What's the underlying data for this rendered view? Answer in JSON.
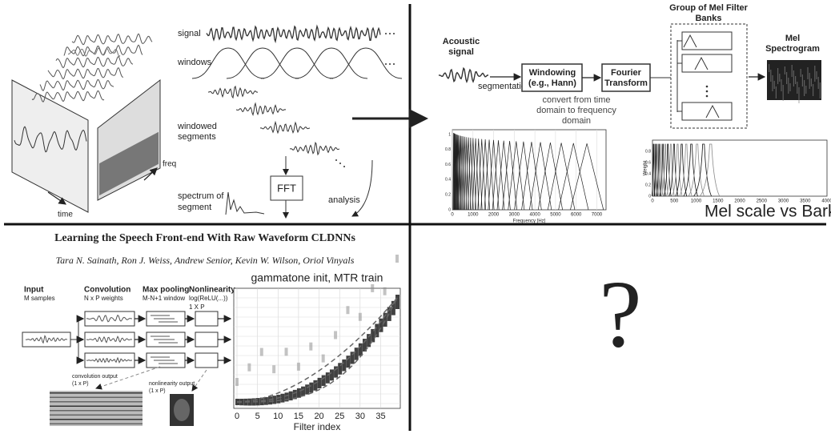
{
  "stft": {
    "signal": "signal",
    "windows": "windows",
    "windowed_segments": [
      "windowed",
      "segments"
    ],
    "spectrum": [
      "spectrum of",
      "segment"
    ],
    "fft": "FFT",
    "analysis": "analysis",
    "time": "time",
    "freq": "freq"
  },
  "pipeline": {
    "acoustic_signal": [
      "Acoustic",
      "signal"
    ],
    "segmentation": "segmentation",
    "windowing": [
      "Windowing",
      "(e.g., Hann)"
    ],
    "fourier": [
      "Fourier",
      "Transform"
    ],
    "convert_note": [
      "convert from time",
      "domain to frequency",
      "domain"
    ],
    "filter_banks_title": [
      "Group of Mel Filter",
      "Banks"
    ],
    "mel_spectrogram": [
      "Mel",
      "Spectrogram"
    ]
  },
  "mel_plot": {
    "xlabel": "Frequency [Hz]",
    "xticks": [
      0,
      1000,
      2000,
      3000,
      4000,
      5000,
      6000,
      7000
    ],
    "yticks": [
      0,
      0.2,
      0.4,
      0.6,
      0.8,
      1
    ]
  },
  "bark_plot": {
    "ylabel": "Weight",
    "xticks": [
      0,
      500,
      1000,
      1500,
      2000,
      2500,
      3000,
      3500,
      4000
    ],
    "yticks": [
      0,
      0.2,
      0.4,
      0.6,
      0.8
    ],
    "caption": "Mel scale vs Bark scale"
  },
  "paper": {
    "title": "Learning the Speech Front-end With Raw Waveform CLDNNs",
    "authors": "Tara N. Sainath, Ron J. Weiss, Andrew Senior, Kevin W. Wilson, Oriol Vinyals",
    "stages": [
      {
        "name": "Input",
        "detail": [
          "M samples"
        ]
      },
      {
        "name": "Convolution",
        "detail": [
          "N x P weights"
        ]
      },
      {
        "name": "Max pooling",
        "detail": [
          "M-N+1 window"
        ]
      },
      {
        "name": "Nonlinearity",
        "detail": [
          "log(ReLU(...))",
          "1 X P"
        ]
      }
    ],
    "conv_output": [
      "convolution output",
      "(1 x P)"
    ],
    "nonlin_output": [
      "nonlinearity output",
      "(1 x P)"
    ],
    "plot_title": "gammatone init, MTR train",
    "xlabel": "Filter index",
    "xticks": [
      0,
      5,
      10,
      15,
      20,
      25,
      30,
      35
    ]
  },
  "unknown": "?"
}
